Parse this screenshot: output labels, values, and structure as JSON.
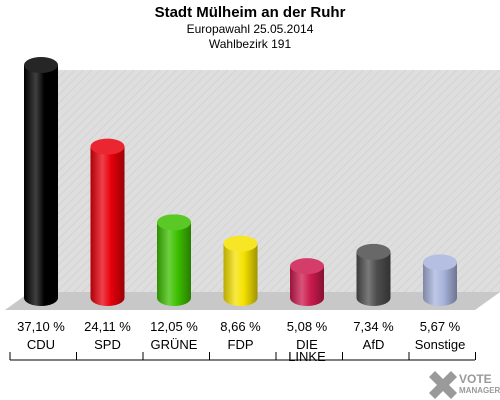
{
  "chart_data": {
    "type": "bar",
    "title": "Stadt Mülheim an der Ruhr",
    "subtitle": "Europawahl 25.05.2014",
    "subtitle2": "Wahlbezirk 191",
    "categories": [
      "CDU",
      "SPD",
      "GRÜNE",
      "FDP",
      "DIE LINKE",
      "AfD",
      "Sonstige"
    ],
    "category_lines": [
      [
        "CDU"
      ],
      [
        "SPD"
      ],
      [
        "GRÜNE"
      ],
      [
        "FDP"
      ],
      [
        "DIE",
        "LINKE"
      ],
      [
        "AfD"
      ],
      [
        "Sonstige"
      ]
    ],
    "values": [
      37.1,
      24.11,
      12.05,
      8.66,
      5.08,
      7.34,
      5.67
    ],
    "value_labels": [
      "37,10 %",
      "24,11 %",
      "12,05 %",
      "8,66 %",
      "5,08 %",
      "7,34 %",
      "5,67 %"
    ],
    "colors": [
      "#000000",
      "#e8000b",
      "#3dc000",
      "#f5e200",
      "#cc1a4e",
      "#4d4d4d",
      "#a8b4dc"
    ],
    "ylim": [
      0,
      37.1
    ]
  },
  "logo": {
    "line1": "VOTE",
    "line2": "MANAGER"
  }
}
